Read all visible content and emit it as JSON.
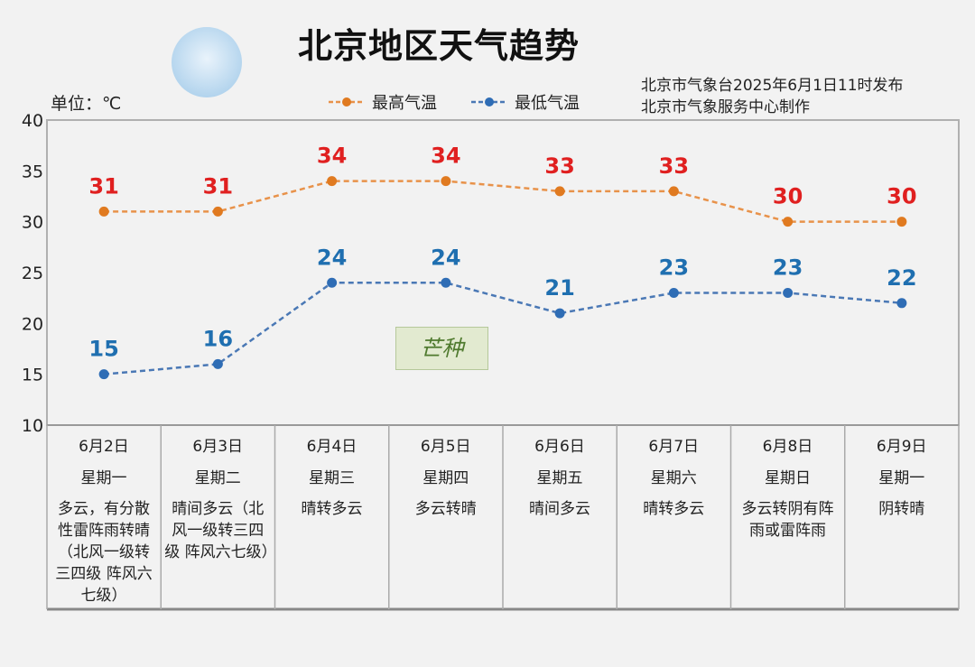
{
  "header": {
    "title": "北京地区天气趋势",
    "unit": "单位：℃",
    "source_line1": "北京市气象台2025年6月1日11时发布",
    "source_line2": "北京市气象服务中心制作"
  },
  "solar_term": "芒种",
  "chart_data": {
    "type": "line",
    "categories": [
      "6月2日",
      "6月3日",
      "6月4日",
      "6月5日",
      "6月6日",
      "6月7日",
      "6月8日",
      "6月9日"
    ],
    "ylim": [
      10,
      40
    ],
    "yticks": [
      "10",
      "15",
      "20",
      "25",
      "30",
      "35",
      "40"
    ],
    "legend_placement": "top",
    "series": [
      {
        "name": "最高气温",
        "values": [
          31,
          31,
          34,
          34,
          33,
          33,
          30,
          30
        ],
        "color": "#e8924a",
        "label_color": "#e02020"
      },
      {
        "name": "最低气温",
        "values": [
          15,
          16,
          24,
          24,
          21,
          23,
          23,
          22
        ],
        "color": "#4a78b5",
        "label_color": "#1f6fb0"
      }
    ]
  },
  "days": [
    {
      "date": "6月2日",
      "weekday": "星期一",
      "weather": "多云，有分散性雷阵雨转晴（北风一级转三四级 阵风六七级）"
    },
    {
      "date": "6月3日",
      "weekday": "星期二",
      "weather": "晴间多云（北风一级转三四级 阵风六七级）"
    },
    {
      "date": "6月4日",
      "weekday": "星期三",
      "weather": "晴转多云"
    },
    {
      "date": "6月5日",
      "weekday": "星期四",
      "weather": "多云转晴"
    },
    {
      "date": "6月6日",
      "weekday": "星期五",
      "weather": "晴间多云"
    },
    {
      "date": "6月7日",
      "weekday": "星期六",
      "weather": "晴转多云"
    },
    {
      "date": "6月8日",
      "weekday": "星期日",
      "weather": "多云转阴有阵雨或雷阵雨"
    },
    {
      "date": "6月9日",
      "weekday": "星期一",
      "weather": "阴转晴"
    }
  ]
}
